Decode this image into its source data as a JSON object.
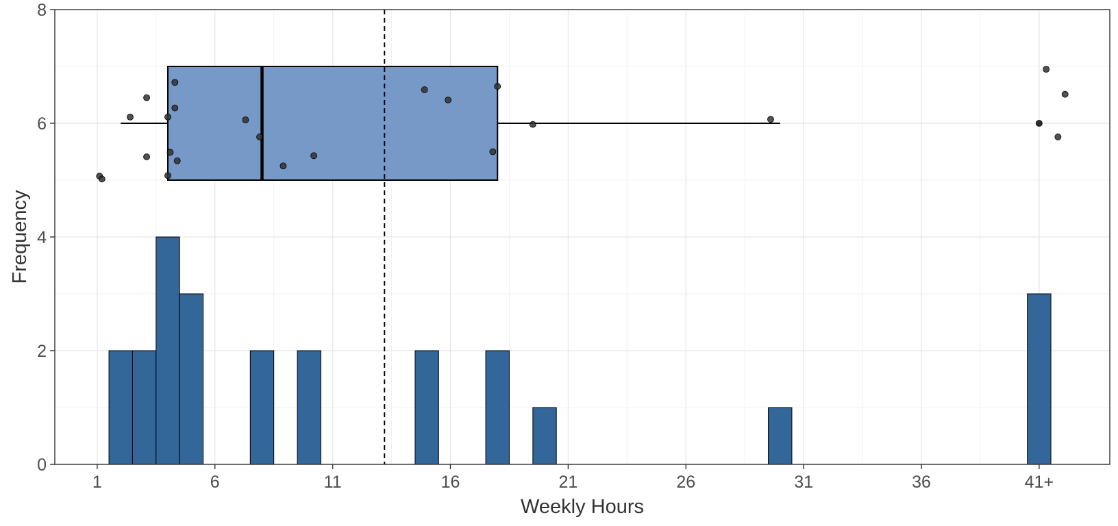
{
  "chart_data": {
    "type": "bar",
    "xlabel": "Weekly Hours",
    "ylabel": "Frequency",
    "xlim": [
      -0.8,
      44
    ],
    "ylim": [
      0,
      8
    ],
    "x_ticks": [
      {
        "value": 1,
        "label": "1"
      },
      {
        "value": 6,
        "label": "6"
      },
      {
        "value": 11,
        "label": "11"
      },
      {
        "value": 16,
        "label": "16"
      },
      {
        "value": 21,
        "label": "21"
      },
      {
        "value": 26,
        "label": "26"
      },
      {
        "value": 31,
        "label": "31"
      },
      {
        "value": 36,
        "label": "36"
      },
      {
        "value": 41,
        "label": "41+"
      }
    ],
    "y_ticks": [
      0,
      2,
      4,
      6,
      8
    ],
    "grid": true,
    "bar_color": "#336699",
    "bin_width": 1,
    "bins": [
      {
        "x": 2,
        "count": 2
      },
      {
        "x": 3,
        "count": 2
      },
      {
        "x": 4,
        "count": 4
      },
      {
        "x": 5,
        "count": 3
      },
      {
        "x": 8,
        "count": 2
      },
      {
        "x": 10,
        "count": 2
      },
      {
        "x": 15,
        "count": 2
      },
      {
        "x": 18,
        "count": 2
      },
      {
        "x": 20,
        "count": 1
      },
      {
        "x": 30,
        "count": 1
      },
      {
        "x": 41,
        "count": 3
      }
    ],
    "mean_line": 13.2,
    "boxplot": {
      "fill": "#7799c8",
      "y_center": 6,
      "y_low": 5,
      "y_high": 7,
      "whisker_low": 2.0,
      "q1": 4.0,
      "median": 8.0,
      "q3": 18.0,
      "whisker_high": 30.0,
      "outliers": [
        41,
        41,
        41
      ]
    },
    "jitter_points": [
      {
        "x": 1.1,
        "y": 5.07
      },
      {
        "x": 1.2,
        "y": 5.02
      },
      {
        "x": 2.4,
        "y": 6.11
      },
      {
        "x": 3.1,
        "y": 6.45
      },
      {
        "x": 3.1,
        "y": 5.41
      },
      {
        "x": 4.0,
        "y": 6.11
      },
      {
        "x": 4.0,
        "y": 5.08
      },
      {
        "x": 4.1,
        "y": 5.49
      },
      {
        "x": 4.3,
        "y": 6.27
      },
      {
        "x": 4.3,
        "y": 6.72
      },
      {
        "x": 4.4,
        "y": 5.34
      },
      {
        "x": 7.3,
        "y": 6.06
      },
      {
        "x": 7.9,
        "y": 5.76
      },
      {
        "x": 8.9,
        "y": 5.25
      },
      {
        "x": 10.2,
        "y": 5.43
      },
      {
        "x": 14.9,
        "y": 6.59
      },
      {
        "x": 15.9,
        "y": 6.41
      },
      {
        "x": 17.8,
        "y": 5.5
      },
      {
        "x": 18.0,
        "y": 6.65
      },
      {
        "x": 19.5,
        "y": 5.98
      },
      {
        "x": 29.6,
        "y": 6.07
      },
      {
        "x": 41.0,
        "y": 6.0
      },
      {
        "x": 41.3,
        "y": 6.95
      },
      {
        "x": 41.8,
        "y": 5.76
      },
      {
        "x": 42.1,
        "y": 6.51
      }
    ]
  }
}
